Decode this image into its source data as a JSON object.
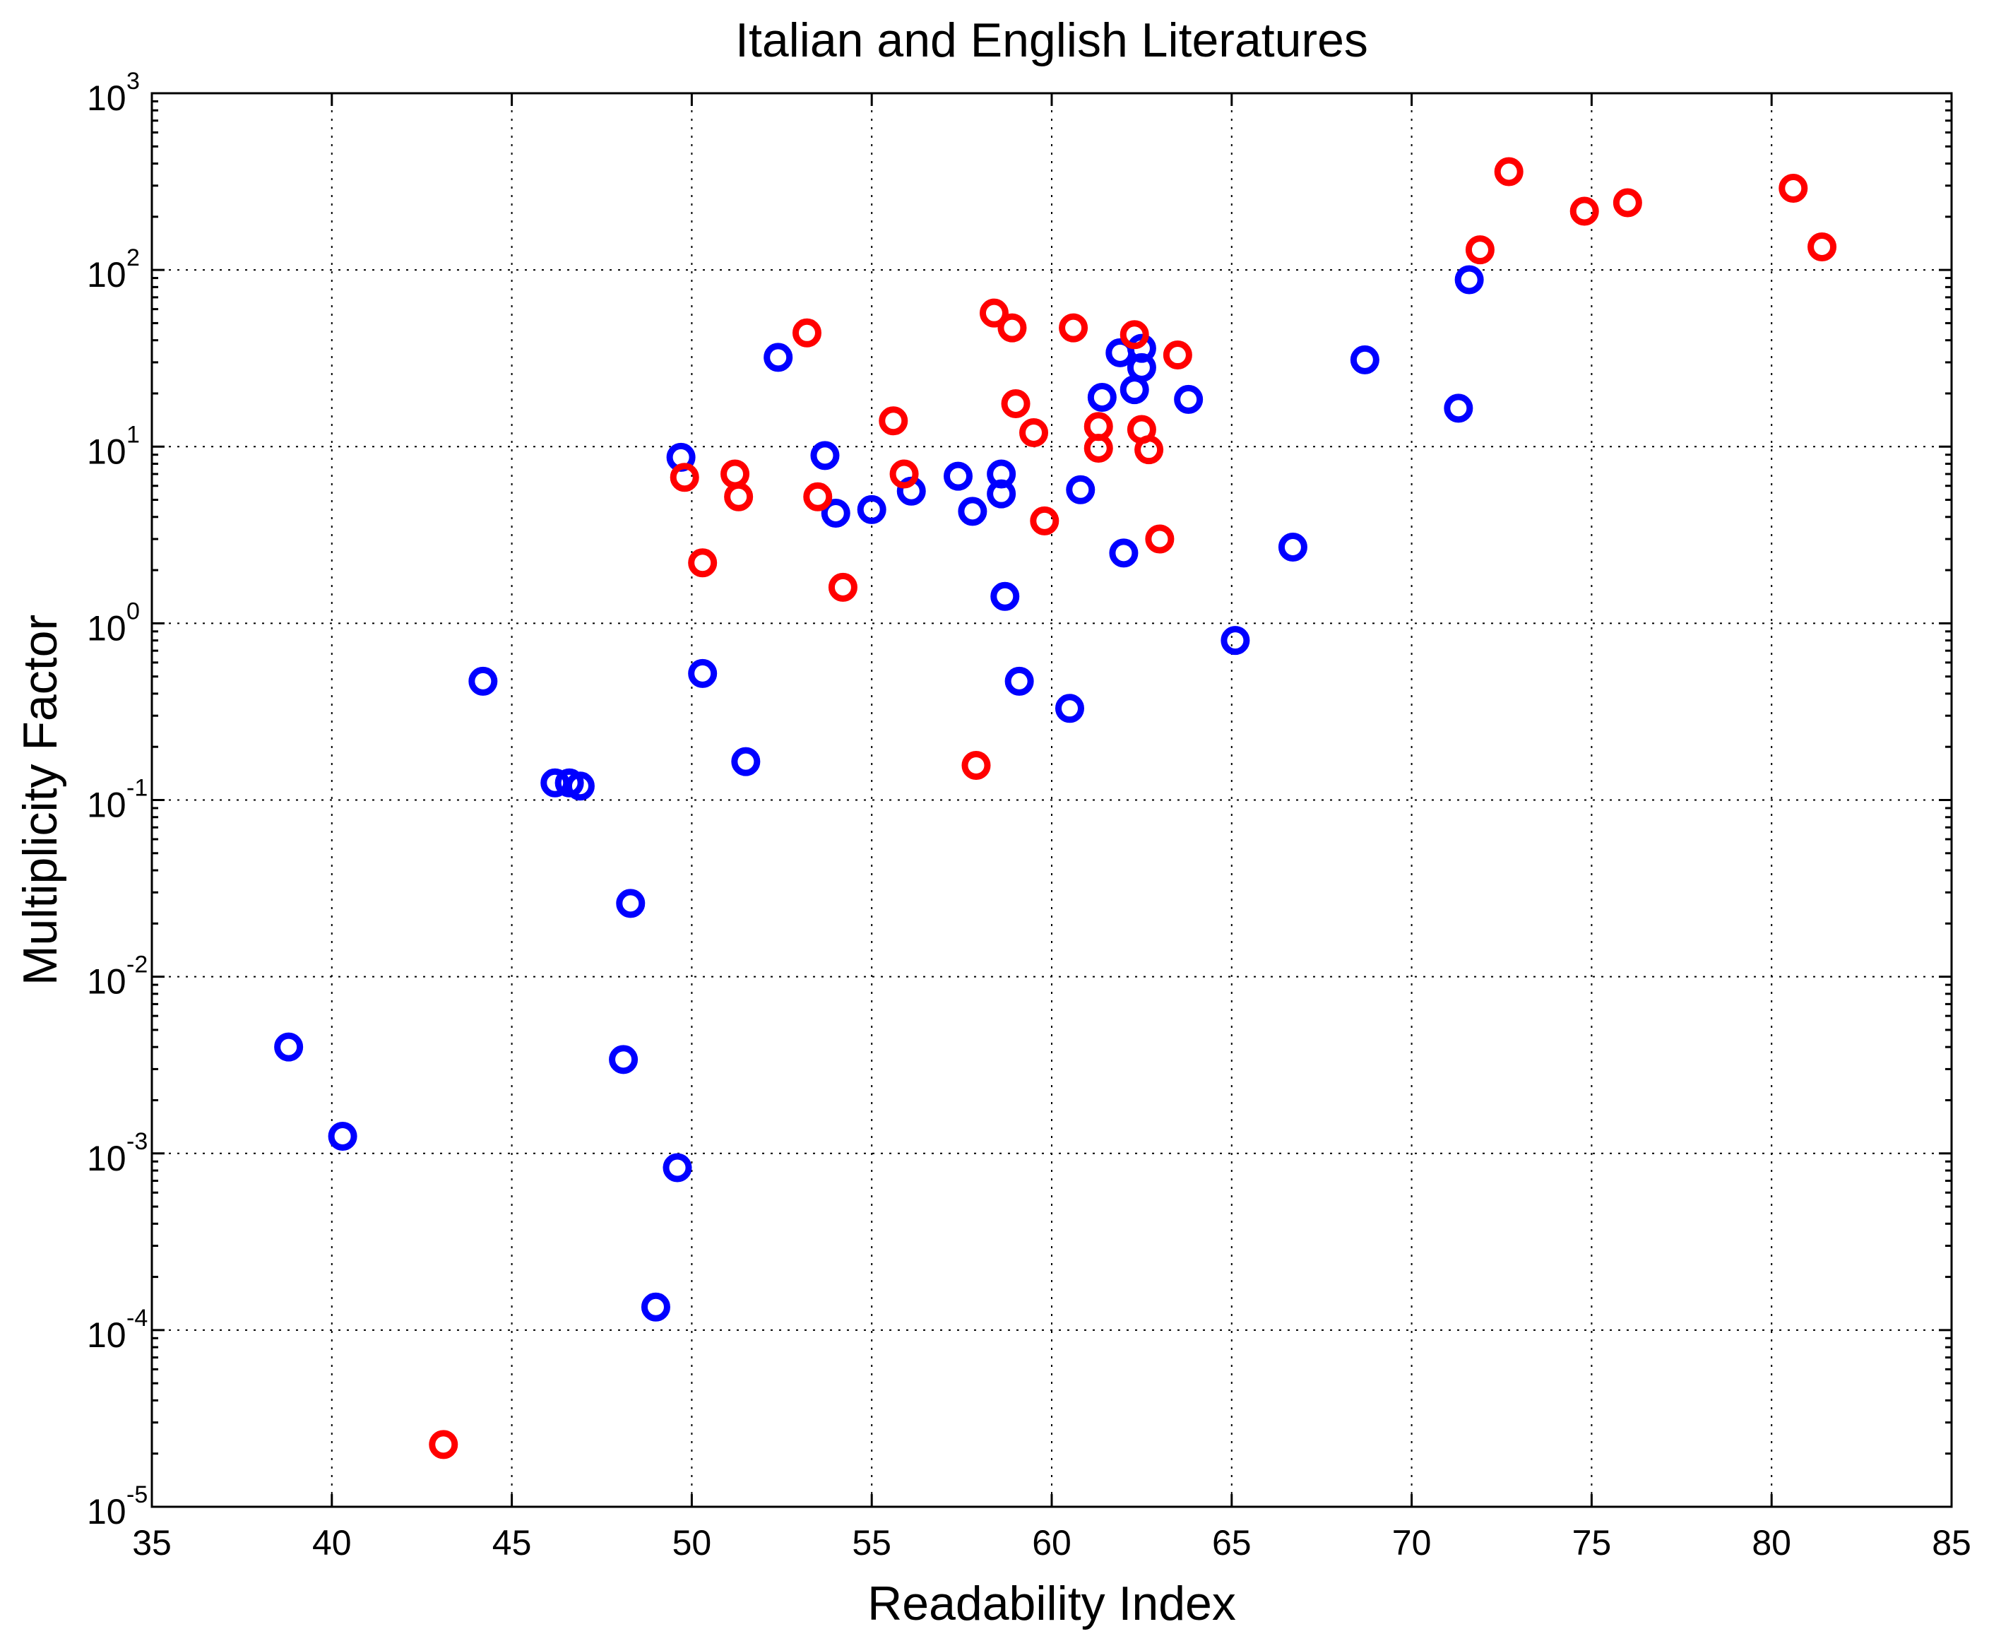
{
  "chart_data": {
    "type": "scatter",
    "title": "Italian and English Literatures",
    "xlabel": "Readability Index",
    "ylabel": "Multiplicity Factor",
    "xlim": [
      35,
      85
    ],
    "ylim": [
      1e-05,
      1000
    ],
    "yscale": "log",
    "grid": true,
    "x_ticks": [
      35,
      40,
      45,
      50,
      55,
      60,
      65,
      70,
      75,
      80,
      85
    ],
    "x_tick_labels": [
      "35",
      "40",
      "45",
      "50",
      "55",
      "60",
      "65",
      "70",
      "75",
      "80",
      "85"
    ],
    "y_ticks": [
      {
        "value": 1e-05,
        "base": "10",
        "exp": "-5"
      },
      {
        "value": 0.0001,
        "base": "10",
        "exp": "-4"
      },
      {
        "value": 0.001,
        "base": "10",
        "exp": "-3"
      },
      {
        "value": 0.01,
        "base": "10",
        "exp": "-2"
      },
      {
        "value": 0.1,
        "base": "10",
        "exp": "-1"
      },
      {
        "value": 1,
        "base": "10",
        "exp": "0"
      },
      {
        "value": 10,
        "base": "10",
        "exp": "1"
      },
      {
        "value": 100,
        "base": "10",
        "exp": "2"
      },
      {
        "value": 1000,
        "base": "10",
        "exp": "3"
      }
    ],
    "series": [
      {
        "color": "#0000ff",
        "marker": "circle-open",
        "points": [
          [
            38.8,
            0.004
          ],
          [
            40.3,
            0.00125
          ],
          [
            44.2,
            0.47
          ],
          [
            46.2,
            0.125
          ],
          [
            46.6,
            0.125
          ],
          [
            46.9,
            0.12
          ],
          [
            48.1,
            0.0034
          ],
          [
            48.3,
            0.026
          ],
          [
            49.0,
            0.000135
          ],
          [
            49.6,
            0.00083
          ],
          [
            49.7,
            8.7
          ],
          [
            50.3,
            0.52
          ],
          [
            51.5,
            0.165
          ],
          [
            52.4,
            32
          ],
          [
            53.7,
            8.9
          ],
          [
            54.0,
            4.2
          ],
          [
            55.0,
            4.4
          ],
          [
            56.1,
            5.6
          ],
          [
            57.4,
            6.8
          ],
          [
            57.8,
            4.3
          ],
          [
            58.6,
            5.4
          ],
          [
            58.6,
            7.0
          ],
          [
            58.7,
            1.42
          ],
          [
            59.1,
            0.47
          ],
          [
            60.5,
            0.33
          ],
          [
            60.8,
            5.7
          ],
          [
            61.4,
            19
          ],
          [
            61.9,
            34
          ],
          [
            62.0,
            2.5
          ],
          [
            62.3,
            21
          ],
          [
            62.5,
            28
          ],
          [
            62.5,
            36
          ],
          [
            63.8,
            18.5
          ],
          [
            65.1,
            0.8
          ],
          [
            66.7,
            2.7
          ],
          [
            68.7,
            31
          ],
          [
            71.3,
            16.5
          ],
          [
            71.6,
            88
          ]
        ]
      },
      {
        "color": "#ff0000",
        "marker": "circle-open",
        "points": [
          [
            43.1,
            2.25e-05
          ],
          [
            49.8,
            6.7
          ],
          [
            50.3,
            2.2
          ],
          [
            51.2,
            7.0
          ],
          [
            51.3,
            5.2
          ],
          [
            53.2,
            44
          ],
          [
            53.5,
            5.2
          ],
          [
            54.2,
            1.6
          ],
          [
            55.6,
            14
          ],
          [
            55.9,
            7.0
          ],
          [
            57.9,
            0.157
          ],
          [
            58.4,
            57
          ],
          [
            58.9,
            47
          ],
          [
            59.0,
            17.5
          ],
          [
            59.5,
            12
          ],
          [
            59.8,
            3.8
          ],
          [
            60.6,
            47
          ],
          [
            61.3,
            13
          ],
          [
            61.3,
            9.8
          ],
          [
            62.3,
            43
          ],
          [
            62.5,
            12.5
          ],
          [
            62.7,
            9.6
          ],
          [
            63.0,
            3.0
          ],
          [
            63.5,
            33
          ],
          [
            71.9,
            130
          ],
          [
            72.7,
            360
          ],
          [
            74.8,
            215
          ],
          [
            76.0,
            240
          ],
          [
            80.6,
            290
          ],
          [
            81.4,
            135
          ]
        ]
      }
    ]
  }
}
